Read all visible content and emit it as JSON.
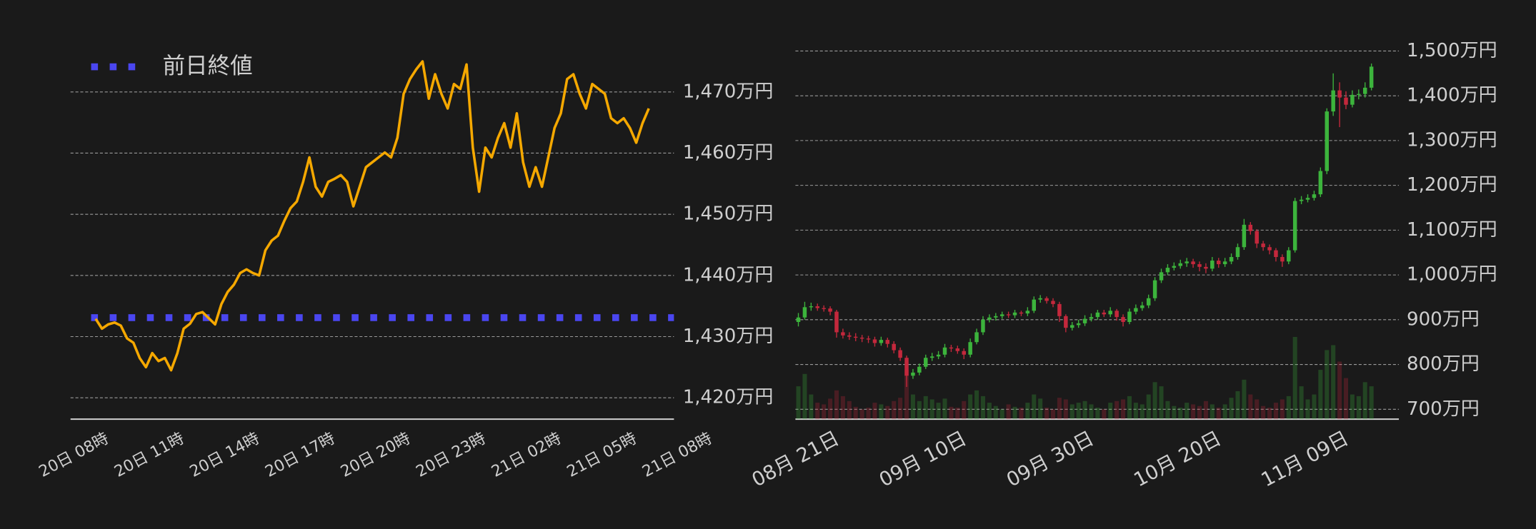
{
  "chart_data": [
    {
      "type": "line",
      "categories": [
        "20日 08時",
        null,
        null,
        null,
        null,
        null,
        null,
        null,
        null,
        null,
        null,
        null,
        "20日 11時",
        null,
        null,
        null,
        null,
        null,
        null,
        null,
        null,
        null,
        null,
        null,
        "20日 14時",
        null,
        null,
        null,
        null,
        null,
        null,
        null,
        null,
        null,
        null,
        null,
        "20日 17時",
        null,
        null,
        null,
        null,
        null,
        null,
        null,
        null,
        null,
        null,
        null,
        "20日 20時",
        null,
        null,
        null,
        null,
        null,
        null,
        null,
        null,
        null,
        null,
        null,
        "20日 23時",
        null,
        null,
        null,
        null,
        null,
        null,
        null,
        null,
        null,
        null,
        null,
        "21日 02時",
        null,
        null,
        null,
        null,
        null,
        null,
        null,
        null,
        null,
        null,
        null,
        "21日 05時",
        null,
        null,
        null,
        null,
        null,
        null,
        null,
        null,
        null,
        null,
        null,
        "21日 08時"
      ],
      "values": [
        null,
        null,
        null,
        null,
        1432.9,
        1431.3,
        1432,
        1432.3,
        1431.8,
        1429.7,
        1429,
        1426.5,
        1425,
        1427.3,
        1426,
        1426.5,
        1424.5,
        1427.3,
        1431.3,
        1432.1,
        1433.7,
        1434,
        1433,
        1432,
        1435.3,
        1437.3,
        1438.5,
        1440.4,
        1441,
        1440.4,
        1440,
        1444.1,
        1445.7,
        1446.5,
        1448.9,
        1451,
        1452.1,
        1455.3,
        1459.3,
        1454.5,
        1452.9,
        1455.3,
        1455.8,
        1456.4,
        1455.3,
        1451.3,
        1454.5,
        1457.7,
        1458.5,
        1459.3,
        1460.1,
        1459.3,
        1462.5,
        1469.7,
        1472.1,
        1473.7,
        1475,
        1468.9,
        1472.9,
        1469.7,
        1467.3,
        1471.3,
        1470.5,
        1474.5,
        1460.9,
        1453.7,
        1460.9,
        1459.3,
        1462.5,
        1464.9,
        1460.9,
        1466.5,
        1458.5,
        1454.5,
        1457.7,
        1454.5,
        1459.3,
        1464.1,
        1466.5,
        1472.1,
        1472.9,
        1469.7,
        1467.3,
        1471.3,
        1470.5,
        1469.7,
        1465.7,
        1464.9,
        1465.7,
        1464.1,
        1461.7,
        1464.9,
        1467.3,
        null,
        null,
        null,
        null
      ],
      "color": "#f5a800",
      "reference_line": {
        "name": "前日終値",
        "value": 1433.1,
        "color": "#4a46f0"
      },
      "ylim": [
        1416.5,
        1477
      ],
      "yticks": [
        {
          "value": 1420,
          "label": "1,420万円"
        },
        {
          "value": 1430,
          "label": "1,430万円"
        },
        {
          "value": 1440,
          "label": "1,440万円"
        },
        {
          "value": 1450,
          "label": "1,450万円"
        },
        {
          "value": 1460,
          "label": "1,460万円"
        },
        {
          "value": 1470,
          "label": "1,470万円"
        }
      ],
      "grid": true
    },
    {
      "type": "candlestick",
      "categories": [
        null,
        "08月 21日",
        null,
        null,
        null,
        null,
        null,
        null,
        null,
        null,
        null,
        null,
        null,
        null,
        null,
        null,
        null,
        null,
        null,
        null,
        null,
        "09月 10日",
        null,
        null,
        null,
        null,
        null,
        null,
        null,
        null,
        null,
        null,
        null,
        null,
        null,
        null,
        null,
        null,
        null,
        null,
        null,
        "09月 30日",
        null,
        null,
        null,
        null,
        null,
        null,
        null,
        null,
        null,
        null,
        null,
        null,
        null,
        null,
        null,
        null,
        null,
        null,
        null,
        "10月 20日",
        null,
        null,
        null,
        null,
        null,
        null,
        null,
        null,
        null,
        null,
        null,
        null,
        null,
        null,
        null,
        null,
        null,
        null,
        null,
        "11月 09日",
        null,
        null,
        null,
        null,
        null,
        null,
        null,
        null,
        null
      ],
      "open": [
        895,
        905,
        928,
        930,
        926,
        925,
        918,
        872,
        865,
        862,
        860,
        858,
        856,
        848,
        855,
        846,
        832,
        815,
        775,
        782,
        795,
        815,
        818,
        822,
        838,
        836,
        830,
        822,
        850,
        872,
        900,
        905,
        908,
        912,
        910,
        916,
        914,
        920,
        945,
        948,
        942,
        935,
        908,
        882,
        888,
        892,
        902,
        906,
        916,
        912,
        920,
        906,
        895,
        918,
        926,
        932,
        948,
        988,
        1006,
        1016,
        1020,
        1026,
        1030,
        1024,
        1018,
        1014,
        1032,
        1024,
        1030,
        1040,
        1062,
        1112,
        1098,
        1070,
        1062,
        1055,
        1040,
        1030,
        1055,
        1165,
        1168,
        1172,
        1180,
        1232,
        1365,
        1412,
        1396,
        1380,
        1402,
        1404,
        1418
      ],
      "high": [
        915,
        940,
        938,
        936,
        932,
        930,
        922,
        880,
        872,
        870,
        866,
        864,
        862,
        862,
        860,
        852,
        838,
        820,
        790,
        802,
        822,
        826,
        830,
        846,
        844,
        842,
        836,
        858,
        880,
        908,
        912,
        915,
        918,
        918,
        922,
        920,
        928,
        952,
        955,
        952,
        948,
        940,
        912,
        895,
        900,
        910,
        914,
        922,
        922,
        928,
        924,
        912,
        925,
        934,
        940,
        956,
        995,
        1014,
        1024,
        1028,
        1034,
        1038,
        1036,
        1030,
        1026,
        1040,
        1038,
        1038,
        1048,
        1070,
        1125,
        1118,
        1102,
        1076,
        1068,
        1060,
        1046,
        1062,
        1172,
        1176,
        1180,
        1188,
        1240,
        1372,
        1450,
        1430,
        1410,
        1412,
        1414,
        1430,
        1472
      ],
      "low": [
        885,
        900,
        920,
        920,
        918,
        910,
        860,
        858,
        855,
        852,
        850,
        848,
        840,
        842,
        838,
        825,
        808,
        750,
        768,
        776,
        790,
        808,
        812,
        816,
        828,
        824,
        812,
        816,
        845,
        866,
        894,
        898,
        902,
        904,
        904,
        908,
        908,
        915,
        938,
        936,
        928,
        895,
        872,
        876,
        882,
        886,
        896,
        900,
        906,
        906,
        898,
        885,
        890,
        912,
        920,
        926,
        942,
        982,
        1000,
        1010,
        1014,
        1018,
        1016,
        1008,
        1004,
        1008,
        1016,
        1018,
        1024,
        1034,
        1056,
        1090,
        1060,
        1054,
        1046,
        1030,
        1018,
        1024,
        1050,
        1158,
        1162,
        1166,
        1174,
        1225,
        1355,
        1330,
        1370,
        1374,
        1392,
        1396,
        1412
      ],
      "close": [
        905,
        928,
        930,
        926,
        925,
        918,
        872,
        865,
        862,
        860,
        858,
        856,
        848,
        855,
        846,
        832,
        815,
        775,
        782,
        795,
        815,
        818,
        822,
        838,
        836,
        830,
        822,
        850,
        872,
        900,
        905,
        908,
        912,
        910,
        916,
        914,
        920,
        945,
        948,
        942,
        935,
        908,
        882,
        888,
        892,
        902,
        906,
        916,
        912,
        920,
        906,
        895,
        918,
        926,
        932,
        948,
        988,
        1006,
        1016,
        1020,
        1026,
        1030,
        1024,
        1018,
        1014,
        1032,
        1024,
        1030,
        1040,
        1062,
        1112,
        1098,
        1070,
        1062,
        1055,
        1040,
        1030,
        1055,
        1165,
        1168,
        1172,
        1180,
        1232,
        1365,
        1412,
        1396,
        1380,
        1402,
        1404,
        1418,
        1465
      ],
      "volume": [
        40,
        55,
        30,
        20,
        18,
        25,
        35,
        28,
        22,
        15,
        12,
        14,
        20,
        18,
        16,
        22,
        26,
        60,
        30,
        22,
        28,
        24,
        20,
        25,
        15,
        14,
        22,
        30,
        35,
        28,
        20,
        16,
        12,
        18,
        15,
        14,
        20,
        30,
        25,
        14,
        12,
        26,
        24,
        18,
        20,
        22,
        18,
        14,
        12,
        20,
        22,
        24,
        28,
        20,
        18,
        30,
        45,
        40,
        22,
        16,
        14,
        20,
        18,
        16,
        22,
        18,
        14,
        18,
        26,
        34,
        48,
        30,
        24,
        16,
        14,
        20,
        24,
        28,
        100,
        40,
        24,
        30,
        60,
        84,
        90,
        70,
        50,
        30,
        28,
        45,
        40
      ],
      "up_color": "#3cb43c",
      "down_color": "#c4283c",
      "ylim": [
        678,
        1515
      ],
      "yticks": [
        {
          "value": 700,
          "label": "700万円"
        },
        {
          "value": 800,
          "label": "800万円"
        },
        {
          "value": 900,
          "label": "900万円"
        },
        {
          "value": 1000,
          "label": "1,000万円"
        },
        {
          "value": 1100,
          "label": "1,100万円"
        },
        {
          "value": 1200,
          "label": "1,200万円"
        },
        {
          "value": 1300,
          "label": "1,300万円"
        },
        {
          "value": 1400,
          "label": "1,400万円"
        },
        {
          "value": 1500,
          "label": "1,500万円"
        }
      ],
      "grid": true
    }
  ]
}
